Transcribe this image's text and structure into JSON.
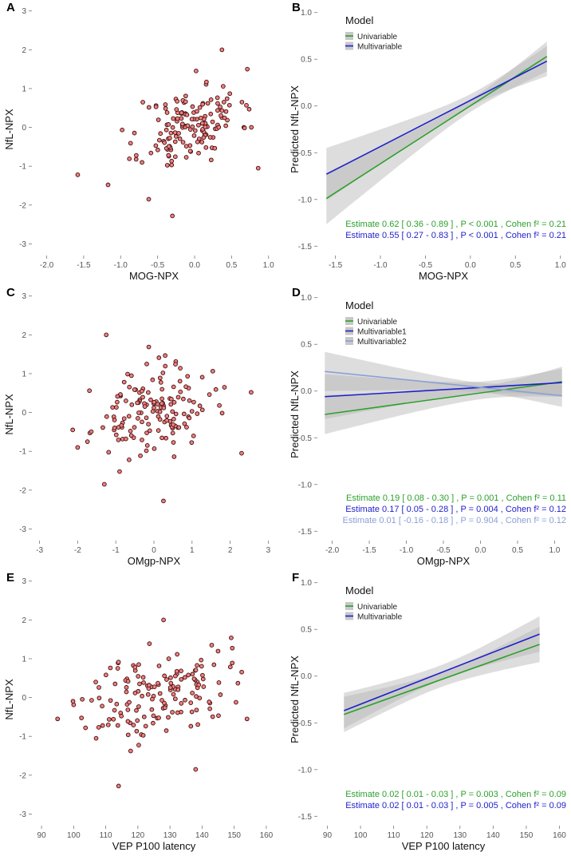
{
  "colors": {
    "point_fill": "#F08080",
    "point_stroke": "#3a0a0a",
    "green": "#2ca02c",
    "blue": "#1f1fcc",
    "lightblue": "#8aa0d8",
    "band": "#b4b4b4"
  },
  "chart_data": [
    {
      "panel": "A",
      "type": "scatter",
      "xlabel": "MOG-NPX",
      "ylabel": "NfL-NPX",
      "xlim": [
        -2.2,
        1.1
      ],
      "ylim": [
        -3.3,
        3.2
      ],
      "xticks": [
        -2.0,
        -1.5,
        -1.0,
        -0.5,
        0.0,
        0.5,
        1.0
      ],
      "xtick_labels": [
        "-2.0",
        "-1.5",
        "-1.0",
        "-0.5",
        "0.0",
        "0.5",
        "1.0"
      ],
      "yticks": [
        -3,
        -2,
        -1,
        0,
        1,
        2,
        3
      ],
      "ytick_labels": [
        "-3",
        "-2",
        "-1",
        "0",
        "1",
        "2",
        "3"
      ],
      "seed": 11,
      "n_points": 150,
      "mean": [
        -0.05,
        0.05
      ],
      "sd": [
        0.33,
        0.5
      ],
      "slope": 0.6,
      "extra_points": [
        [
          -1.58,
          -1.22
        ],
        [
          -1.17,
          -1.48
        ],
        [
          -0.62,
          -1.85
        ],
        [
          -0.3,
          -2.28
        ],
        [
          0.37,
          2.0
        ],
        [
          0.86,
          -1.05
        ],
        [
          -0.7,
          0.65
        ]
      ]
    },
    {
      "panel": "B",
      "type": "line",
      "xlabel": "MOG-NPX",
      "ylabel": "Predicted NfL-NPX",
      "xlim": [
        -1.7,
        1.1
      ],
      "ylim": [
        -1.6,
        1.1
      ],
      "xticks": [
        -1.5,
        -1.0,
        -0.5,
        0.0,
        0.5,
        1.0
      ],
      "xtick_labels": [
        "-1.5",
        "-1.0",
        "-0.5",
        "0.0",
        "0.5",
        "1.0"
      ],
      "yticks": [
        -1.5,
        -1.0,
        -0.5,
        0.0,
        0.5,
        1.0
      ],
      "ytick_labels": [
        "-1.5",
        "-1.0",
        "-0.5",
        "0.0",
        "0.5",
        "1.0"
      ],
      "legend_title": "Model",
      "series": [
        {
          "name": "Univariable",
          "color_key": "green",
          "x": [
            -1.6,
            0.85
          ],
          "y": [
            -0.99,
            0.53
          ],
          "ci_lower": [
            -1.27,
            0.37
          ],
          "ci_upper": [
            -0.72,
            0.69
          ],
          "ci_center_x": 0.0
        },
        {
          "name": "Multivariable",
          "color_key": "blue",
          "x": [
            -1.6,
            0.85
          ],
          "y": [
            -0.73,
            0.48
          ],
          "ci_lower": [
            -1.01,
            0.32
          ],
          "ci_upper": [
            -0.45,
            0.64
          ],
          "ci_center_x": 0.0
        }
      ],
      "stats": [
        {
          "color_key": "green",
          "text": "Estimate  0.62 [ 0.36 - 0.89 ] , P < 0.001 , Cohen f² = 0.21"
        },
        {
          "color_key": "blue",
          "text": "Estimate  0.55 [ 0.27 - 0.83 ] , P < 0.001 , Cohen f² = 0.21"
        }
      ]
    },
    {
      "panel": "C",
      "type": "scatter",
      "xlabel": "OMgp-NPX",
      "ylabel": "NfL-NPX",
      "xlim": [
        -3.2,
        3.2
      ],
      "ylim": [
        -3.3,
        3.2
      ],
      "xticks": [
        -3,
        -2,
        -1,
        0,
        1,
        2,
        3
      ],
      "xtick_labels": [
        "-3",
        "-2",
        "-1",
        "0",
        "1",
        "2",
        "3"
      ],
      "yticks": [
        -3,
        -2,
        -1,
        0,
        1,
        2,
        3
      ],
      "ytick_labels": [
        "-3",
        "-2",
        "-1",
        "0",
        "1",
        "2",
        "3"
      ],
      "seed": 23,
      "n_points": 150,
      "mean": [
        -0.1,
        0.0
      ],
      "sd": [
        0.75,
        0.55
      ],
      "slope": 0.15,
      "extra_points": [
        [
          -1.25,
          2.0
        ],
        [
          0.25,
          -2.28
        ],
        [
          -1.3,
          -1.85
        ],
        [
          2.3,
          -1.05
        ],
        [
          2.55,
          0.52
        ],
        [
          1.85,
          0.65
        ],
        [
          -2.0,
          -0.9
        ]
      ]
    },
    {
      "panel": "D",
      "type": "line",
      "xlabel": "OMgp-NPX",
      "ylabel": "Predicted NfL-NPX",
      "xlim": [
        -2.2,
        1.2
      ],
      "ylim": [
        -1.6,
        1.1
      ],
      "xticks": [
        -2.0,
        -1.5,
        -1.0,
        -0.5,
        0.0,
        0.5,
        1.0
      ],
      "xtick_labels": [
        "-2.0",
        "-1.5",
        "-1.0",
        "-0.5",
        "0.0",
        "0.5",
        "1.0"
      ],
      "yticks": [
        -1.5,
        -1.0,
        -0.5,
        0.0,
        0.5,
        1.0
      ],
      "ytick_labels": [
        "-1.5",
        "-1.0",
        "-0.5",
        "0.0",
        "0.5",
        "1.0"
      ],
      "legend_title": "Model",
      "series": [
        {
          "name": "Univariable",
          "color_key": "green",
          "x": [
            -2.1,
            1.1
          ],
          "y": [
            -0.25,
            0.1
          ],
          "ci_lower": [
            -0.46,
            -0.06
          ],
          "ci_upper": [
            -0.04,
            0.26
          ],
          "ci_center_x": 0.0
        },
        {
          "name": "Multivariable1",
          "color_key": "blue",
          "x": [
            -2.1,
            1.1
          ],
          "y": [
            -0.06,
            0.09
          ],
          "ci_lower": [
            -0.3,
            -0.06
          ],
          "ci_upper": [
            0.18,
            0.24
          ],
          "ci_center_x": 0.0
        },
        {
          "name": "Multivariable2",
          "color_key": "lightblue",
          "x": [
            -2.1,
            1.1
          ],
          "y": [
            0.21,
            -0.05
          ],
          "ci_lower": [
            0.0,
            -0.17
          ],
          "ci_upper": [
            0.42,
            0.07
          ],
          "ci_center_x": 0.0
        }
      ],
      "stats": [
        {
          "color_key": "green",
          "text": "Estimate  0.19 [ 0.08 - 0.30 ] , P = 0.001 , Cohen f² = 0.11"
        },
        {
          "color_key": "blue",
          "text": "Estimate  0.17 [ 0.05 - 0.28 ] , P = 0.004 , Cohen f² = 0.12"
        },
        {
          "color_key": "lightblue",
          "text": "Estimate  0.01 [ -0.16 - 0.18 ] , P = 0.904 , Cohen f² = 0.12"
        }
      ]
    },
    {
      "panel": "E",
      "type": "scatter",
      "xlabel": "VEP P100 latency",
      "ylabel": "NfL-NPX",
      "xlim": [
        87,
        163
      ],
      "ylim": [
        -3.3,
        3.2
      ],
      "xticks": [
        90,
        100,
        110,
        120,
        130,
        140,
        150,
        160
      ],
      "xtick_labels": [
        "90",
        "100",
        "110",
        "120",
        "130",
        "140",
        "150",
        "160"
      ],
      "yticks": [
        -3,
        -2,
        -1,
        0,
        1,
        2,
        3
      ],
      "ytick_labels": [
        "-3",
        "-2",
        "-1",
        "0",
        "1",
        "2",
        "3"
      ],
      "seed": 37,
      "n_points": 150,
      "mean": [
        126,
        0.1
      ],
      "sd": [
        11,
        0.55
      ],
      "slope": 0.02,
      "extra_points": [
        [
          95,
          -0.55
        ],
        [
          128,
          2.0
        ],
        [
          114,
          -2.28
        ],
        [
          138,
          -1.85
        ],
        [
          107,
          -1.05
        ],
        [
          154,
          -0.55
        ],
        [
          143,
          1.35
        ]
      ]
    },
    {
      "panel": "F",
      "type": "line",
      "xlabel": "VEP P100 latency",
      "ylabel": "Predicted NfL-NPX",
      "xlim": [
        87,
        163
      ],
      "ylim": [
        -1.6,
        1.1
      ],
      "xticks": [
        90,
        100,
        110,
        120,
        130,
        140,
        150,
        160
      ],
      "xtick_labels": [
        "90",
        "100",
        "110",
        "120",
        "130",
        "140",
        "150",
        "160"
      ],
      "yticks": [
        -1.5,
        -1.0,
        -0.5,
        0.0,
        0.5,
        1.0
      ],
      "ytick_labels": [
        "-1.5",
        "-1.0",
        "-0.5",
        "0.0",
        "0.5",
        "1.0"
      ],
      "legend_title": "Model",
      "series": [
        {
          "name": "Univariable",
          "color_key": "green",
          "x": [
            95,
            154
          ],
          "y": [
            -0.41,
            0.34
          ],
          "ci_lower": [
            -0.6,
            0.15
          ],
          "ci_upper": [
            -0.22,
            0.53
          ],
          "ci_center_x": 125
        },
        {
          "name": "Multivariable",
          "color_key": "blue",
          "x": [
            95,
            154
          ],
          "y": [
            -0.37,
            0.45
          ],
          "ci_lower": [
            -0.56,
            0.26
          ],
          "ci_upper": [
            -0.18,
            0.64
          ],
          "ci_center_x": 125
        }
      ],
      "stats": [
        {
          "color_key": "green",
          "text": "Estimate  0.02 [ 0.01 - 0.03 ] , P = 0.003 , Cohen f² = 0.09"
        },
        {
          "color_key": "blue",
          "text": "Estimate  0.02 [ 0.01 - 0.03 ] , P = 0.005 , Cohen f² = 0.09"
        }
      ]
    }
  ]
}
